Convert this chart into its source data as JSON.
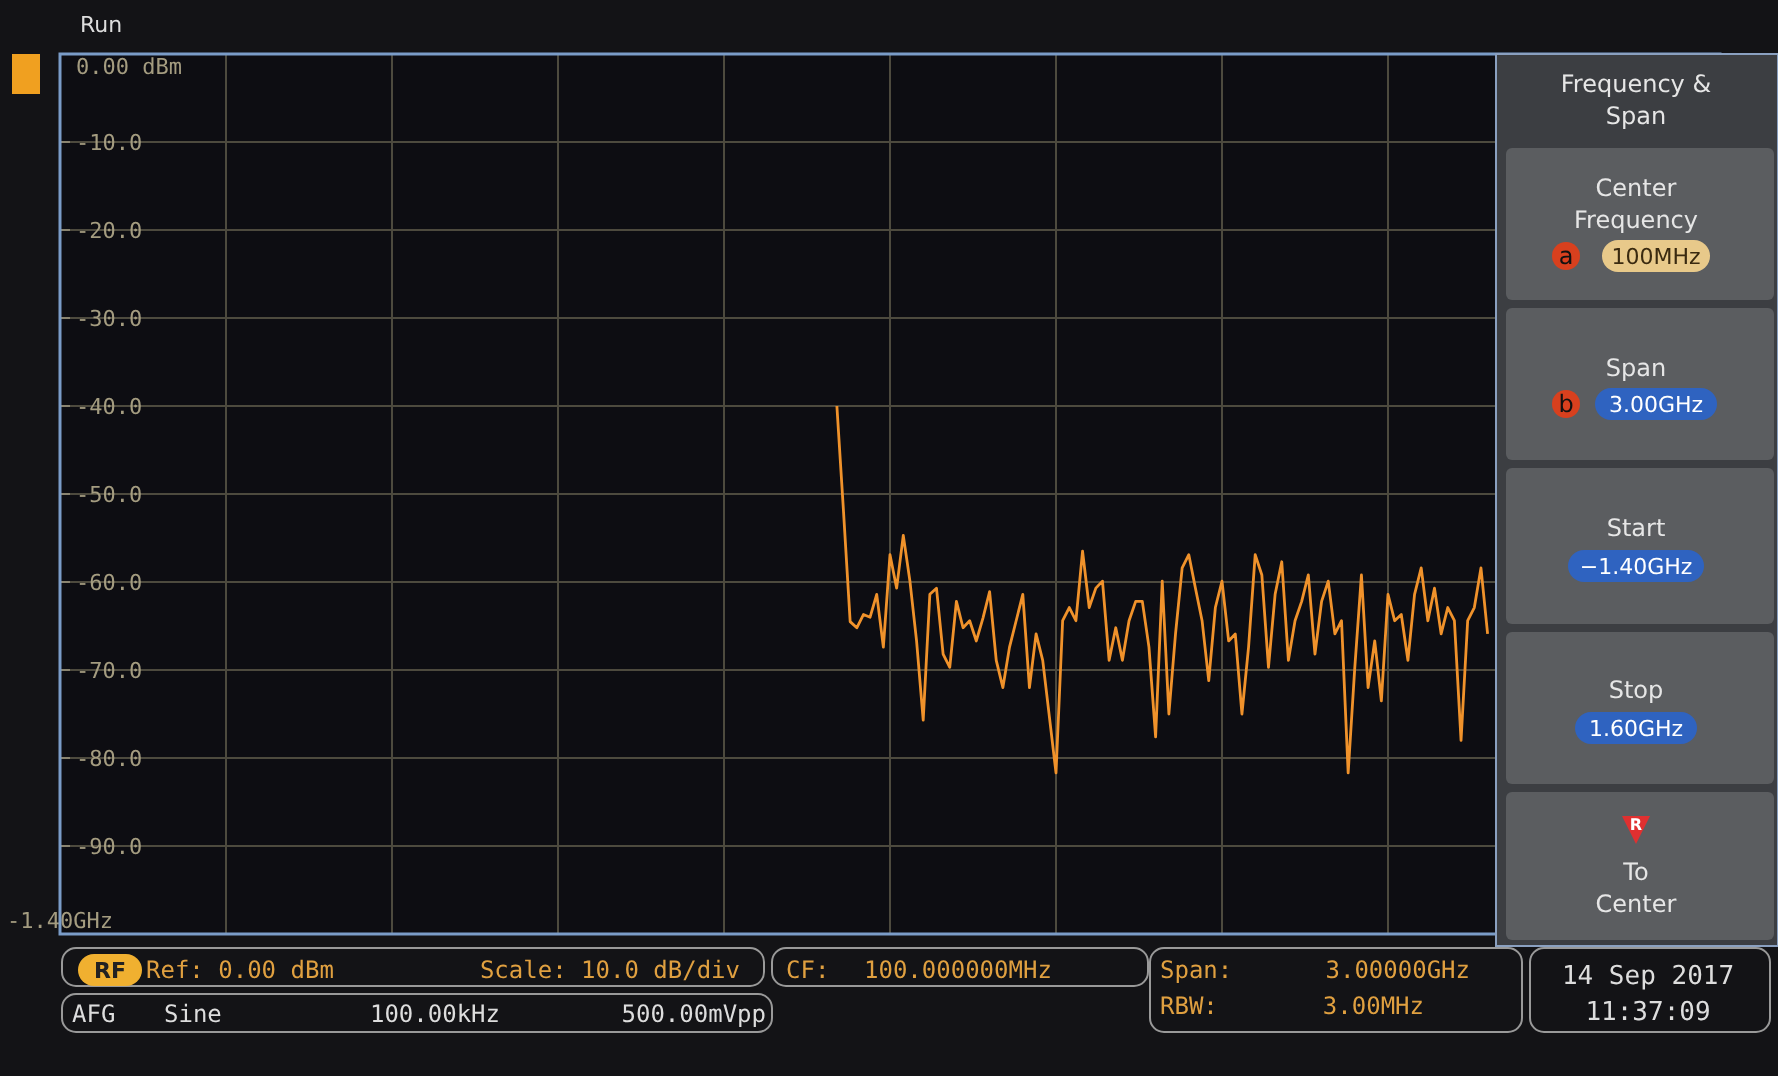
{
  "chart_data": {
    "type": "line",
    "ylim": [
      -100,
      0
    ],
    "categories": [
      "-1.40GHz",
      null,
      null,
      null,
      null,
      null,
      null,
      null,
      null,
      null,
      null,
      null,
      null,
      null,
      null,
      null,
      null,
      null,
      null,
      null,
      null,
      null,
      null,
      null,
      null,
      null,
      null,
      null,
      null,
      null,
      null,
      null,
      null,
      null,
      null,
      null,
      null,
      null,
      null,
      null,
      null,
      null,
      null,
      null,
      null,
      null,
      null,
      null,
      null,
      null,
      null,
      null,
      null,
      null,
      null,
      null,
      null,
      null,
      null,
      null,
      null,
      null,
      null,
      null,
      null,
      null,
      null,
      null,
      null,
      null,
      null,
      null,
      null,
      null,
      null,
      null,
      null,
      null,
      null,
      null,
      null,
      null,
      null,
      null,
      null,
      null,
      null,
      null,
      null,
      null,
      null,
      null,
      null,
      null,
      null,
      null,
      null,
      null,
      null,
      null,
      null,
      null,
      null,
      null,
      null,
      null,
      null,
      null,
      null,
      null,
      null,
      null,
      null,
      null,
      null,
      null,
      null,
      null,
      null,
      null,
      null,
      null,
      null,
      null,
      null,
      null,
      null,
      null,
      null,
      null,
      null,
      null,
      null,
      null,
      null,
      null,
      null,
      null,
      null,
      null,
      null,
      null,
      null,
      null,
      null,
      null,
      null,
      null,
      null,
      null,
      null,
      null,
      null,
      null,
      null,
      null,
      null,
      null,
      null,
      null,
      null,
      null,
      null,
      null,
      null,
      null,
      null,
      null,
      null,
      null,
      null,
      null,
      null,
      null,
      null,
      null,
      null,
      null,
      null,
      null,
      null,
      null,
      null,
      null,
      null,
      null,
      null,
      null,
      null,
      null,
      null,
      null,
      null,
      null,
      null,
      null,
      null,
      null,
      null,
      null,
      null,
      null,
      null,
      null,
      null,
      null,
      null,
      null,
      null,
      null,
      null,
      null,
      null,
      null,
      null,
      null,
      null,
      null,
      null,
      null,
      null,
      null,
      null,
      null,
      null,
      null,
      null,
      null,
      null,
      null,
      null,
      null,
      null,
      null,
      null,
      null,
      null,
      null,
      null,
      null,
      null,
      null,
      null,
      null,
      null,
      null,
      null,
      null,
      null,
      null,
      null
    ],
    "yticks": [
      {
        "value": 0,
        "label": "0.00 dBm"
      },
      {
        "value": -10,
        "label": "-10.0"
      },
      {
        "value": -20,
        "label": "-20.0"
      },
      {
        "value": -30,
        "label": "-30.0"
      },
      {
        "value": -40,
        "label": "-40.0"
      },
      {
        "value": -50,
        "label": "-50.0"
      },
      {
        "value": -60,
        "label": "-60.0"
      },
      {
        "value": -70,
        "label": "-70.0"
      },
      {
        "value": -80,
        "label": "-80.0"
      },
      {
        "value": -90,
        "label": "-90.0"
      },
      {
        "value": -100,
        "label": null
      }
    ],
    "grid": true,
    "line_style": "solid",
    "marker": "none",
    "series": [
      {
        "color": "#f0922b",
        "values": [
          null,
          null,
          null,
          null,
          null,
          null,
          null,
          null,
          null,
          null,
          null,
          null,
          null,
          null,
          null,
          null,
          null,
          null,
          null,
          null,
          null,
          null,
          null,
          null,
          null,
          null,
          null,
          null,
          null,
          null,
          null,
          null,
          null,
          null,
          null,
          null,
          null,
          null,
          null,
          null,
          null,
          null,
          null,
          null,
          null,
          null,
          null,
          null,
          null,
          null,
          null,
          null,
          null,
          null,
          null,
          null,
          null,
          null,
          null,
          null,
          null,
          null,
          null,
          null,
          null,
          null,
          null,
          null,
          null,
          null,
          null,
          null,
          null,
          null,
          null,
          null,
          null,
          null,
          null,
          null,
          null,
          null,
          null,
          null,
          null,
          null,
          null,
          null,
          null,
          null,
          null,
          null,
          null,
          null,
          null,
          null,
          null,
          null,
          null,
          null,
          null,
          null,
          null,
          null,
          null,
          null,
          null,
          null,
          null,
          null,
          null,
          null,
          null,
          null,
          null,
          null,
          null,
          -40,
          -52,
          -64.5,
          -65.2,
          -63.7,
          -64,
          -61.4,
          -67.4,
          -56.9,
          -60.7,
          -54.7,
          -59.9,
          -66.7,
          -75.7,
          -61.4,
          -60.7,
          -68.2,
          -69.7,
          -62.2,
          -65.2,
          -64.4,
          -66.7,
          -64.1,
          -61.1,
          -68.9,
          -72,
          -67.4,
          -64.4,
          -61.4,
          -72,
          -65.9,
          -68.9,
          -75.3,
          -81.7,
          -64.4,
          -62.9,
          -64.4,
          -56.5,
          -62.9,
          -60.7,
          -59.9,
          -68.9,
          -65.2,
          -68.9,
          -64.4,
          -62.2,
          -62.2,
          -67.4,
          -77.6,
          -59.9,
          -75,
          -65.9,
          -58.4,
          -56.9,
          -60.7,
          -64.4,
          -71.2,
          -62.9,
          -59.9,
          -66.7,
          -65.9,
          -75,
          -67.4,
          -56.9,
          -59.2,
          -69.7,
          -61.4,
          -57.7,
          -68.9,
          -64.4,
          -62.2,
          -59.2,
          -68.2,
          -62.2,
          -59.9,
          -65.9,
          -64.4,
          -81.7,
          -69.7,
          -59.2,
          -72,
          -66.7,
          -73.5,
          -61.4,
          -64.4,
          -63.7,
          -68.9,
          -61.4,
          -58.4,
          -64.4,
          -60.7,
          -65.9,
          -62.9,
          -64.4,
          -78,
          -64.4,
          -62.9,
          -58.4,
          -65.9,
          null,
          null,
          null,
          null,
          null,
          null,
          null,
          null,
          null,
          null,
          null,
          null,
          null,
          null,
          null,
          null,
          null,
          null,
          null,
          null,
          null,
          null,
          null,
          null,
          null,
          null,
          null,
          null,
          null,
          null,
          null,
          null,
          null,
          null,
          null
        ]
      }
    ],
    "annotations": [
      "Run",
      "Frequency & Span",
      "Center Frequency",
      "a",
      "100MHz",
      "Span",
      "b",
      "3.00GHz",
      "Start",
      "−1.40GHz",
      "Stop",
      "1.60GHz",
      "R",
      "To Center",
      "RF",
      "Ref: 0.00 dBm",
      "Scale: 10.0 dB/div",
      "CF:",
      "100.000000MHz",
      "Span:",
      "3.00000GHz",
      "RBW:",
      "3.00MHz",
      "14 Sep 2017",
      "11:37:09",
      "AFG",
      "Sine",
      "100.00kHz",
      "500.00mVpp"
    ]
  }
}
